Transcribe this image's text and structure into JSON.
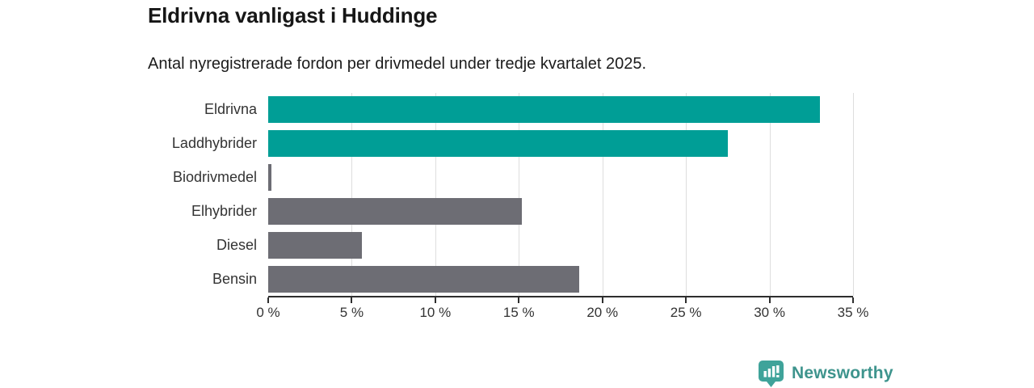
{
  "header": {
    "title": "Eldrivna vanligast i Huddinge",
    "subtitle": "Antal nyregistrerade fordon per drivmedel under tredje kvartalet 2025."
  },
  "chart_data": {
    "type": "bar",
    "orientation": "horizontal",
    "title": "Eldrivna vanligast i Huddinge",
    "subtitle": "Antal nyregistrerade fordon per drivmedel under tredje kvartalet 2025.",
    "categories": [
      "Eldrivna",
      "Laddhybrider",
      "Biodrivmedel",
      "Elhybrider",
      "Diesel",
      "Bensin"
    ],
    "values": [
      33,
      27.5,
      0.2,
      15.2,
      5.6,
      18.6
    ],
    "unit": "%",
    "bar_colors": [
      "#009e96",
      "#009e96",
      "#6d6d74",
      "#6d6d74",
      "#6d6d74",
      "#6d6d74"
    ],
    "xlim": [
      0,
      35
    ],
    "x_ticks": [
      0,
      5,
      10,
      15,
      20,
      25,
      30,
      35
    ],
    "x_tick_labels": [
      "0 %",
      "5 %",
      "10 %",
      "15 %",
      "20 %",
      "25 %",
      "30 %",
      "35 %"
    ],
    "grid": true,
    "legend": false
  },
  "colors": {
    "accent_teal": "#009e96",
    "neutral_gray": "#6d6d74",
    "gridline": "#dedede",
    "axis": "#2e2e2e",
    "text": "#333333",
    "brand_teal": "#3e948d",
    "brand_icon_fill": "#3fa39a"
  },
  "footer": {
    "brand": "Newsworthy",
    "logo_icon": "newsworthy-bar-chart-bubble-icon"
  }
}
